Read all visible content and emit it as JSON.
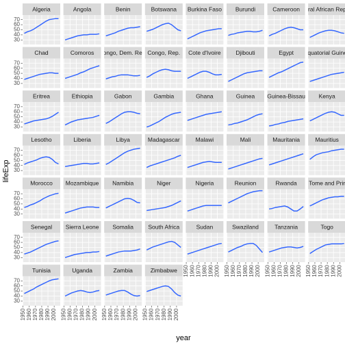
{
  "chart_data": {
    "type": "line",
    "x_label": "year",
    "y_label": "lifeExp",
    "color": "#3366ff",
    "grid": true,
    "x": [
      1952,
      1957,
      1962,
      1967,
      1972,
      1977,
      1982,
      1987,
      1992,
      1997,
      2002,
      2007
    ],
    "xlim": [
      1949.25,
      2009.75
    ],
    "xticks": [
      1950,
      1960,
      1970,
      1980,
      1990,
      2000
    ],
    "ylim": [
      21,
      79
    ],
    "yticks": [
      30,
      40,
      50,
      60,
      70
    ],
    "series": [
      {
        "name": "Algeria",
        "values": [
          43,
          46,
          48,
          51,
          55,
          59,
          63,
          67,
          70,
          71,
          72,
          72
        ]
      },
      {
        "name": "Angola",
        "values": [
          30,
          32,
          34,
          36,
          38,
          39,
          40,
          40,
          41,
          41,
          41,
          42
        ]
      },
      {
        "name": "Benin",
        "values": [
          38,
          40,
          42,
          44,
          47,
          49,
          51,
          53,
          54,
          54,
          55,
          56
        ]
      },
      {
        "name": "Botswana",
        "values": [
          47,
          49,
          51,
          54,
          57,
          60,
          62,
          63,
          60,
          55,
          50,
          48
        ]
      },
      {
        "name": "Burkina Faso",
        "values": [
          32,
          35,
          38,
          41,
          44,
          46,
          48,
          49,
          50,
          51,
          52,
          52
        ]
      },
      {
        "name": "Burundi",
        "values": [
          39,
          41,
          42,
          44,
          45,
          46,
          47,
          47,
          46,
          46,
          47,
          49
        ]
      },
      {
        "name": "Cameroon",
        "values": [
          38,
          41,
          43,
          46,
          49,
          52,
          54,
          55,
          54,
          52,
          50,
          50
        ]
      },
      {
        "name": "Central African Republic",
        "values": [
          35,
          38,
          41,
          44,
          46,
          48,
          49,
          49,
          48,
          46,
          44,
          43
        ]
      },
      {
        "name": "Chad",
        "values": [
          38,
          40,
          42,
          44,
          46,
          48,
          49,
          50,
          51,
          51,
          50,
          50
        ]
      },
      {
        "name": "Comoros",
        "values": [
          40,
          42,
          44,
          46,
          48,
          51,
          53,
          56,
          59,
          61,
          63,
          65
        ]
      },
      {
        "name": "Congo, Dem. Rep.",
        "values": [
          39,
          41,
          43,
          44,
          46,
          47,
          47,
          47,
          46,
          45,
          45,
          46
        ]
      },
      {
        "name": "Congo, Rep.",
        "values": [
          42,
          45,
          49,
          52,
          55,
          57,
          58,
          57,
          55,
          54,
          54,
          54
        ]
      },
      {
        "name": "Cote d'Ivoire",
        "values": [
          40,
          43,
          46,
          49,
          52,
          54,
          54,
          52,
          49,
          47,
          47,
          48
        ]
      },
      {
        "name": "Djibouti",
        "values": [
          34,
          37,
          40,
          43,
          46,
          49,
          51,
          52,
          53,
          54,
          55,
          55
        ]
      },
      {
        "name": "Egypt",
        "values": [
          42,
          45,
          48,
          51,
          53,
          56,
          59,
          62,
          65,
          68,
          71,
          72
        ]
      },
      {
        "name": "Equatorial Guinea",
        "values": [
          34,
          36,
          38,
          40,
          42,
          44,
          46,
          48,
          49,
          50,
          51,
          52
        ]
      },
      {
        "name": "Eritrea",
        "values": [
          36,
          38,
          40,
          42,
          43,
          44,
          45,
          46,
          48,
          51,
          55,
          59
        ]
      },
      {
        "name": "Ethiopia",
        "values": [
          34,
          37,
          40,
          42,
          44,
          45,
          46,
          47,
          48,
          49,
          51,
          53
        ]
      },
      {
        "name": "Gabon",
        "values": [
          37,
          40,
          44,
          48,
          52,
          56,
          59,
          60,
          60,
          59,
          57,
          56
        ]
      },
      {
        "name": "Gambia",
        "values": [
          30,
          32,
          35,
          38,
          41,
          45,
          49,
          52,
          55,
          57,
          58,
          59
        ]
      },
      {
        "name": "Ghana",
        "values": [
          43,
          45,
          47,
          49,
          51,
          53,
          55,
          56,
          57,
          58,
          59,
          60
        ]
      },
      {
        "name": "Guinea",
        "values": [
          34,
          35,
          37,
          38,
          40,
          42,
          44,
          47,
          50,
          53,
          55,
          56
        ]
      },
      {
        "name": "Guinea-Bissau",
        "values": [
          32,
          33,
          35,
          36,
          38,
          39,
          41,
          42,
          43,
          44,
          45,
          46
        ]
      },
      {
        "name": "Kenya",
        "values": [
          42,
          45,
          48,
          51,
          54,
          57,
          59,
          60,
          59,
          56,
          53,
          53
        ]
      },
      {
        "name": "Lesotho",
        "values": [
          42,
          45,
          47,
          49,
          51,
          54,
          56,
          57,
          56,
          52,
          46,
          43
        ]
      },
      {
        "name": "Liberia",
        "values": [
          38,
          39,
          40,
          41,
          42,
          43,
          44,
          44,
          43,
          43,
          44,
          45
        ]
      },
      {
        "name": "Libya",
        "values": [
          42,
          45,
          49,
          53,
          57,
          61,
          65,
          68,
          70,
          72,
          73,
          74
        ]
      },
      {
        "name": "Madagascar",
        "values": [
          36,
          39,
          41,
          43,
          45,
          47,
          49,
          51,
          53,
          55,
          58,
          60
        ]
      },
      {
        "name": "Malawi",
        "values": [
          36,
          38,
          40,
          42,
          44,
          46,
          47,
          48,
          47,
          46,
          46,
          46
        ]
      },
      {
        "name": "Mali",
        "values": [
          33,
          35,
          37,
          39,
          41,
          43,
          45,
          47,
          49,
          51,
          53,
          54
        ]
      },
      {
        "name": "Mauritania",
        "values": [
          41,
          43,
          45,
          47,
          49,
          51,
          53,
          55,
          57,
          59,
          61,
          63
        ]
      },
      {
        "name": "Mauritius",
        "values": [
          52,
          57,
          61,
          63,
          65,
          66,
          67,
          69,
          70,
          71,
          72,
          72
        ]
      },
      {
        "name": "Morocco",
        "values": [
          43,
          45,
          48,
          50,
          53,
          56,
          60,
          63,
          66,
          68,
          70,
          71
        ]
      },
      {
        "name": "Mozambique",
        "values": [
          32,
          34,
          36,
          38,
          40,
          42,
          43,
          44,
          44,
          44,
          43,
          43
        ]
      },
      {
        "name": "Namibia",
        "values": [
          42,
          45,
          48,
          51,
          54,
          57,
          60,
          61,
          60,
          57,
          53,
          52
        ]
      },
      {
        "name": "Niger",
        "values": [
          37,
          38,
          39,
          40,
          41,
          42,
          43,
          45,
          47,
          50,
          53,
          56
        ]
      },
      {
        "name": "Nigeria",
        "values": [
          36,
          38,
          40,
          42,
          44,
          46,
          47,
          47,
          47,
          47,
          47,
          47
        ]
      },
      {
        "name": "Reunion",
        "values": [
          52,
          55,
          58,
          61,
          64,
          67,
          70,
          72,
          74,
          75,
          76,
          76
        ]
      },
      {
        "name": "Rwanda",
        "values": [
          40,
          41,
          43,
          44,
          45,
          46,
          44,
          40,
          36,
          36,
          40,
          45
        ]
      },
      {
        "name": "Sao Tome and Principe",
        "values": [
          46,
          49,
          52,
          55,
          58,
          60,
          62,
          63,
          64,
          64,
          65,
          65
        ]
      },
      {
        "name": "Senegal",
        "values": [
          37,
          39,
          41,
          44,
          47,
          50,
          53,
          56,
          58,
          60,
          62,
          63
        ]
      },
      {
        "name": "Sierra Leone",
        "values": [
          30,
          32,
          34,
          36,
          37,
          38,
          39,
          40,
          40,
          41,
          41,
          42
        ]
      },
      {
        "name": "Somalia",
        "values": [
          33,
          35,
          37,
          39,
          41,
          42,
          43,
          43,
          43,
          44,
          45,
          47
        ]
      },
      {
        "name": "South Africa",
        "values": [
          45,
          48,
          51,
          53,
          55,
          57,
          59,
          61,
          62,
          60,
          55,
          50
        ]
      },
      {
        "name": "Sudan",
        "values": [
          37,
          39,
          41,
          43,
          45,
          47,
          49,
          51,
          53,
          55,
          57,
          58
        ]
      },
      {
        "name": "Swaziland",
        "values": [
          41,
          44,
          47,
          50,
          52,
          55,
          57,
          58,
          58,
          54,
          47,
          40
        ]
      },
      {
        "name": "Tanzania",
        "values": [
          41,
          43,
          45,
          47,
          49,
          50,
          51,
          51,
          50,
          49,
          50,
          52
        ]
      },
      {
        "name": "Togo",
        "values": [
          38,
          42,
          46,
          49,
          52,
          55,
          56,
          57,
          57,
          57,
          57,
          58
        ]
      },
      {
        "name": "Tunisia",
        "values": [
          45,
          48,
          51,
          54,
          58,
          61,
          64,
          67,
          70,
          72,
          73,
          74
        ]
      },
      {
        "name": "Uganda",
        "values": [
          40,
          43,
          46,
          48,
          50,
          51,
          50,
          48,
          47,
          48,
          50,
          51
        ]
      },
      {
        "name": "Zambia",
        "values": [
          42,
          44,
          46,
          48,
          50,
          51,
          51,
          48,
          44,
          41,
          40,
          41
        ]
      },
      {
        "name": "Zimbabwe",
        "values": [
          49,
          51,
          53,
          55,
          57,
          59,
          60,
          59,
          54,
          47,
          42,
          40
        ]
      }
    ]
  }
}
